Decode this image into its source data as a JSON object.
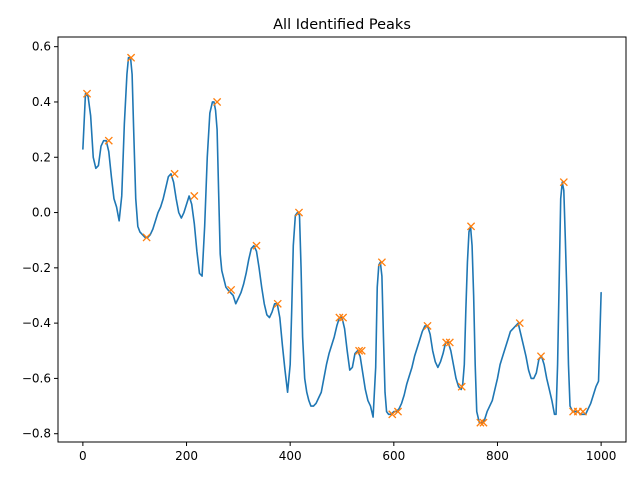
{
  "chart_data": {
    "type": "line",
    "title": "All Identified Peaks",
    "xlabel": "",
    "ylabel": "",
    "xlim": [
      -48,
      1048
    ],
    "ylim": [
      -0.83,
      0.635
    ],
    "x_ticks": [
      0,
      200,
      400,
      600,
      800,
      1000
    ],
    "y_ticks": [
      -0.8,
      -0.6,
      -0.4,
      -0.2,
      0.0,
      0.2,
      0.4,
      0.6
    ],
    "y_tick_labels": [
      "−0.8",
      "−0.6",
      "−0.4",
      "−0.2",
      "0.0",
      "0.2",
      "0.4",
      "0.6"
    ],
    "grid": false,
    "legend": "none",
    "colors": {
      "line": "#1f77b4",
      "markers": "#ff7f0e"
    },
    "series": [
      {
        "role": "signal",
        "x": [
          0,
          5,
          10,
          15,
          20,
          25,
          30,
          35,
          40,
          45,
          50,
          55,
          60,
          65,
          70,
          75,
          80,
          85,
          88,
          92,
          95,
          98,
          102,
          106,
          110,
          115,
          120,
          125,
          130,
          135,
          140,
          145,
          150,
          155,
          160,
          165,
          170,
          175,
          180,
          185,
          190,
          195,
          200,
          205,
          210,
          215,
          220,
          225,
          230,
          235,
          240,
          245,
          250,
          253,
          256,
          259,
          262,
          265,
          268,
          272,
          276,
          280,
          285,
          290,
          295,
          300,
          305,
          310,
          315,
          320,
          325,
          330,
          335,
          340,
          345,
          350,
          355,
          360,
          365,
          370,
          375,
          380,
          385,
          390,
          395,
          400,
          403,
          406,
          410,
          414,
          418,
          421,
          424,
          428,
          432,
          436,
          440,
          445,
          450,
          455,
          460,
          465,
          470,
          475,
          480,
          485,
          490,
          495,
          500,
          505,
          510,
          515,
          520,
          525,
          530,
          535,
          540,
          545,
          550,
          555,
          560,
          565,
          568,
          571,
          574,
          577,
          580,
          583,
          586,
          590,
          595,
          600,
          605,
          610,
          615,
          620,
          625,
          630,
          635,
          640,
          645,
          650,
          655,
          660,
          665,
          670,
          675,
          680,
          685,
          690,
          695,
          700,
          705,
          710,
          715,
          720,
          725,
          730,
          733,
          736,
          739,
          742,
          745,
          748,
          751,
          754,
          757,
          760,
          765,
          770,
          775,
          780,
          785,
          790,
          795,
          800,
          805,
          810,
          815,
          820,
          825,
          830,
          835,
          840,
          845,
          850,
          855,
          860,
          865,
          870,
          875,
          880,
          885,
          890,
          895,
          900,
          905,
          910,
          913,
          916,
          919,
          922,
          925,
          928,
          931,
          934,
          937,
          940,
          945,
          950,
          955,
          960,
          965,
          970,
          975,
          980,
          985,
          990,
          995,
          1000
        ],
        "y": [
          0.23,
          0.43,
          0.42,
          0.35,
          0.2,
          0.16,
          0.17,
          0.24,
          0.26,
          0.26,
          0.22,
          0.13,
          0.05,
          0.02,
          -0.03,
          0.06,
          0.32,
          0.5,
          0.56,
          0.56,
          0.5,
          0.3,
          0.05,
          -0.05,
          -0.07,
          -0.08,
          -0.09,
          -0.09,
          -0.08,
          -0.06,
          -0.03,
          0.0,
          0.02,
          0.05,
          0.09,
          0.13,
          0.14,
          0.11,
          0.05,
          0.0,
          -0.02,
          0.0,
          0.03,
          0.06,
          0.03,
          -0.04,
          -0.14,
          -0.22,
          -0.23,
          -0.05,
          0.2,
          0.36,
          0.4,
          0.4,
          0.37,
          0.3,
          0.07,
          -0.15,
          -0.21,
          -0.24,
          -0.27,
          -0.28,
          -0.29,
          -0.3,
          -0.33,
          -0.31,
          -0.29,
          -0.26,
          -0.22,
          -0.17,
          -0.13,
          -0.12,
          -0.14,
          -0.2,
          -0.27,
          -0.33,
          -0.37,
          -0.38,
          -0.36,
          -0.33,
          -0.33,
          -0.38,
          -0.48,
          -0.57,
          -0.65,
          -0.55,
          -0.35,
          -0.12,
          -0.01,
          0.0,
          -0.01,
          -0.2,
          -0.45,
          -0.6,
          -0.65,
          -0.68,
          -0.7,
          -0.7,
          -0.69,
          -0.67,
          -0.65,
          -0.6,
          -0.55,
          -0.51,
          -0.48,
          -0.45,
          -0.41,
          -0.38,
          -0.38,
          -0.42,
          -0.5,
          -0.57,
          -0.56,
          -0.51,
          -0.5,
          -0.52,
          -0.58,
          -0.64,
          -0.68,
          -0.7,
          -0.74,
          -0.56,
          -0.27,
          -0.19,
          -0.18,
          -0.23,
          -0.45,
          -0.65,
          -0.72,
          -0.73,
          -0.73,
          -0.72,
          -0.72,
          -0.71,
          -0.69,
          -0.66,
          -0.62,
          -0.59,
          -0.56,
          -0.52,
          -0.49,
          -0.46,
          -0.43,
          -0.41,
          -0.41,
          -0.44,
          -0.5,
          -0.54,
          -0.56,
          -0.54,
          -0.51,
          -0.47,
          -0.47,
          -0.5,
          -0.55,
          -0.6,
          -0.63,
          -0.64,
          -0.62,
          -0.55,
          -0.35,
          -0.18,
          -0.07,
          -0.05,
          -0.12,
          -0.3,
          -0.55,
          -0.72,
          -0.76,
          -0.76,
          -0.75,
          -0.72,
          -0.7,
          -0.68,
          -0.64,
          -0.6,
          -0.55,
          -0.52,
          -0.49,
          -0.46,
          -0.43,
          -0.42,
          -0.41,
          -0.4,
          -0.44,
          -0.48,
          -0.52,
          -0.57,
          -0.6,
          -0.6,
          -0.58,
          -0.53,
          -0.52,
          -0.55,
          -0.6,
          -0.64,
          -0.68,
          -0.73,
          -0.73,
          -0.55,
          -0.25,
          0.05,
          0.11,
          0.08,
          -0.1,
          -0.3,
          -0.55,
          -0.7,
          -0.72,
          -0.72,
          -0.72,
          -0.73,
          -0.73,
          -0.73,
          -0.71,
          -0.69,
          -0.66,
          -0.63,
          -0.61,
          -0.29
        ]
      },
      {
        "role": "peaks",
        "x": [
          8,
          50,
          93,
          123,
          177,
          215,
          259,
          286,
          335,
          376,
          417,
          495,
          502,
          533,
          538,
          577,
          597,
          608,
          665,
          701,
          708,
          731,
          749,
          767,
          773,
          843,
          884,
          928,
          946,
          955,
          965
        ],
        "y": [
          0.43,
          0.26,
          0.56,
          -0.09,
          0.14,
          0.06,
          0.4,
          -0.28,
          -0.12,
          -0.33,
          0.0,
          -0.38,
          -0.38,
          -0.5,
          -0.5,
          -0.18,
          -0.73,
          -0.72,
          -0.41,
          -0.47,
          -0.47,
          -0.63,
          -0.05,
          -0.76,
          -0.76,
          -0.4,
          -0.52,
          0.11,
          -0.72,
          -0.72,
          -0.72
        ]
      }
    ]
  }
}
